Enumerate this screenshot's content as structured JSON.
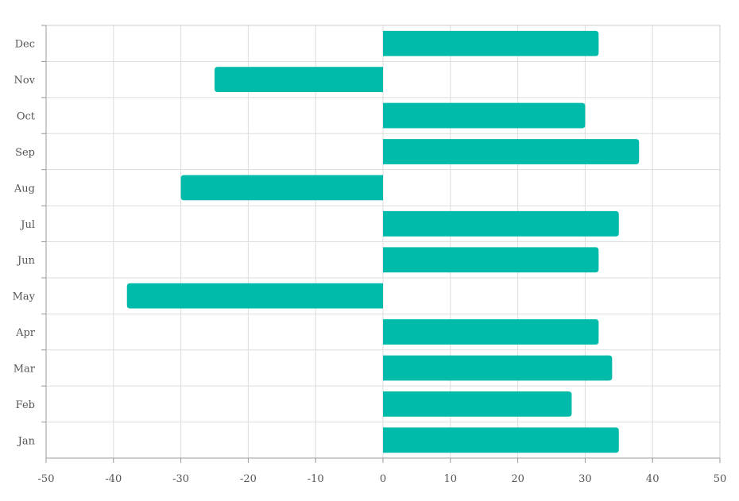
{
  "chart_data": {
    "type": "bar",
    "orientation": "horizontal",
    "categories": [
      "Jan",
      "Feb",
      "Mar",
      "Apr",
      "May",
      "Jun",
      "Jul",
      "Aug",
      "Sep",
      "Oct",
      "Nov",
      "Dec"
    ],
    "values": [
      35,
      28,
      34,
      32,
      -38,
      32,
      35,
      -30,
      38,
      30,
      -25,
      32
    ],
    "xlim": [
      -50,
      50
    ],
    "xticks": [
      -50,
      -40,
      -30,
      -20,
      -10,
      0,
      10,
      20,
      30,
      40,
      50
    ],
    "title": "",
    "xlabel": "",
    "ylabel": "",
    "grid": true,
    "bar_color": "#00BBA9",
    "legend": "none"
  }
}
